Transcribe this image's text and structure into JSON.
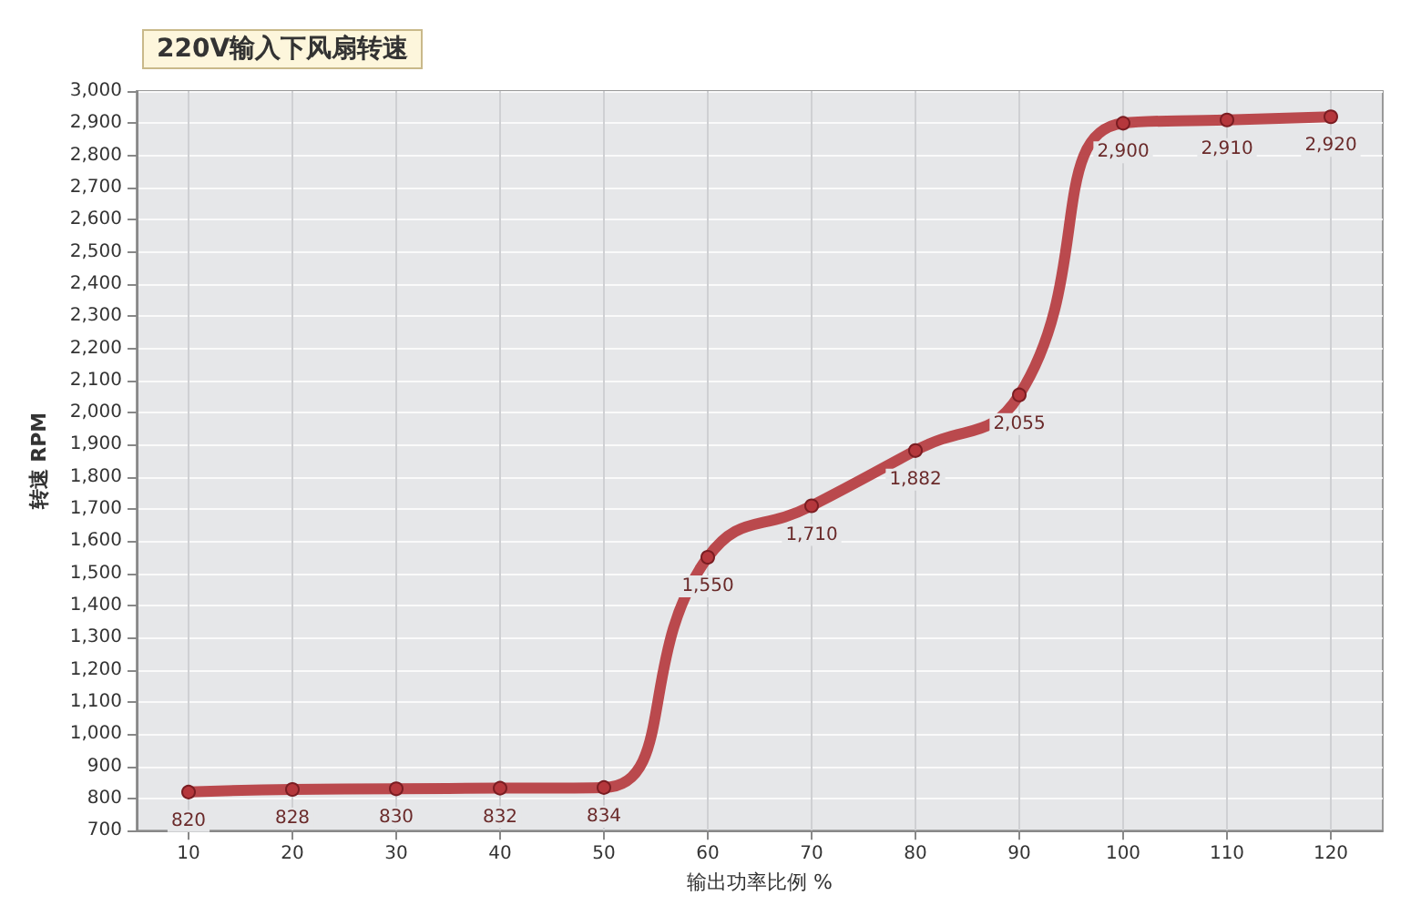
{
  "chart_data": {
    "type": "line",
    "title": "220V输入下风扇转速",
    "xlabel": "输出功率比例 %",
    "ylabel": "转速 RPM",
    "x": [
      10,
      20,
      30,
      40,
      50,
      60,
      70,
      80,
      90,
      100,
      110,
      120
    ],
    "series": [
      {
        "color": "#b5373c",
        "values": [
          820,
          828,
          830,
          832,
          834,
          1550,
          1710,
          1882,
          2055,
          2900,
          2910,
          2920
        ],
        "value_labels": [
          "820",
          "828",
          "830",
          "832",
          "834",
          "1,550",
          "1,710",
          "1,882",
          "2,055",
          "2,900",
          "2,910",
          "2,920"
        ]
      }
    ],
    "xlim": [
      5,
      125
    ],
    "xticks": [
      10,
      20,
      30,
      40,
      50,
      60,
      70,
      80,
      90,
      100,
      110,
      120
    ],
    "ylim": [
      700,
      3000
    ],
    "yticks": [
      {
        "value": 700,
        "label": "700"
      },
      {
        "value": 800,
        "label": "800"
      },
      {
        "value": 900,
        "label": "900"
      },
      {
        "value": 1000,
        "label": "1,000"
      },
      {
        "value": 1100,
        "label": "1,100"
      },
      {
        "value": 1200,
        "label": "1,200"
      },
      {
        "value": 1300,
        "label": "1,300"
      },
      {
        "value": 1400,
        "label": "1,400"
      },
      {
        "value": 1500,
        "label": "1,500"
      },
      {
        "value": 1600,
        "label": "1,600"
      },
      {
        "value": 1700,
        "label": "1,700"
      },
      {
        "value": 1800,
        "label": "1,800"
      },
      {
        "value": 1900,
        "label": "1,900"
      },
      {
        "value": 2000,
        "label": "2,000"
      },
      {
        "value": 2100,
        "label": "2,100"
      },
      {
        "value": 2200,
        "label": "2,200"
      },
      {
        "value": 2300,
        "label": "2,300"
      },
      {
        "value": 2400,
        "label": "2,400"
      },
      {
        "value": 2500,
        "label": "2,500"
      },
      {
        "value": 2600,
        "label": "2,600"
      },
      {
        "value": 2700,
        "label": "2,700"
      },
      {
        "value": 2800,
        "label": "2,800"
      },
      {
        "value": 2900,
        "label": "2,900"
      },
      {
        "value": 3000,
        "label": "3,000"
      }
    ],
    "grid": true,
    "marker": "circle",
    "line_style": "solid"
  }
}
